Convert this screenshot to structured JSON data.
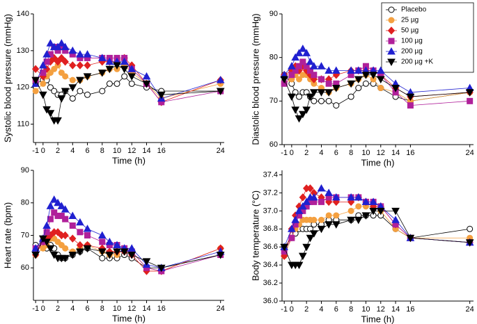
{
  "chart_data": [
    {
      "type": "line",
      "y_label": "Systolic blood pressure (mmHg)",
      "x_label": "Time (h)",
      "x": [
        -1,
        0,
        0.5,
        1,
        1.5,
        2,
        2.5,
        3,
        4,
        5,
        6,
        8,
        9,
        10,
        11,
        12,
        14,
        16,
        24
      ],
      "xlim": [
        -1.3,
        24.5
      ],
      "xticks": [
        -1,
        0,
        2,
        4,
        6,
        8,
        10,
        12,
        14,
        16,
        24
      ],
      "ylim": [
        105,
        140
      ],
      "yticks": [
        110,
        120,
        130,
        140
      ],
      "series": [
        {
          "color": "#000000",
          "fill": "#ffffff",
          "marker": "circle",
          "values": [
            121,
            122,
            122,
            120,
            119,
            118,
            118,
            119,
            117,
            119,
            118,
            119,
            121,
            121,
            123,
            121,
            120,
            119,
            119
          ]
        },
        {
          "color": "#f4a040",
          "fill": "#f4a040",
          "marker": "circle",
          "values": [
            119,
            121,
            123,
            124,
            125,
            126,
            124,
            123,
            122,
            122,
            123,
            124,
            125,
            125,
            126,
            124,
            121,
            117,
            121
          ]
        },
        {
          "color": "#e02020",
          "fill": "#e02020",
          "marker": "diamond",
          "values": [
            125,
            123,
            125,
            127,
            128,
            127,
            128,
            127,
            126,
            126,
            126,
            127,
            127,
            127,
            128,
            126,
            121,
            116,
            122
          ]
        },
        {
          "color": "#b0209a",
          "fill": "#b0209a",
          "marker": "square",
          "values": [
            122,
            124,
            127,
            129,
            131,
            130,
            131,
            130,
            129,
            128,
            128,
            128,
            128,
            128,
            128,
            125,
            121,
            116,
            119
          ]
        },
        {
          "color": "#2020d0",
          "fill": "#2020d0",
          "marker": "triangle",
          "values": [
            121,
            126,
            129,
            132,
            131,
            131,
            132,
            131,
            130,
            129,
            129,
            128,
            127,
            127,
            127,
            125,
            123,
            117,
            122
          ]
        },
        {
          "color": "#000000",
          "fill": "#000000",
          "marker": "down",
          "values": [
            122,
            118,
            114,
            113,
            111,
            111,
            117,
            119,
            120,
            122,
            123,
            124,
            125,
            126,
            125,
            123,
            121,
            118,
            119
          ]
        }
      ]
    },
    {
      "type": "line",
      "y_label": "Diastolic blood pressure (mmHg)",
      "x_label": "Time (h)",
      "x": [
        -1,
        0,
        0.5,
        1,
        1.5,
        2,
        2.5,
        3,
        4,
        5,
        6,
        8,
        9,
        10,
        11,
        12,
        14,
        16,
        24
      ],
      "xlim": [
        -1.3,
        24.5
      ],
      "xticks": [
        -1,
        0,
        2,
        4,
        6,
        8,
        10,
        12,
        14,
        16,
        24
      ],
      "ylim": [
        60,
        90
      ],
      "yticks": [
        60,
        70,
        80,
        90
      ],
      "series": [
        {
          "name": "Placebo",
          "color": "#000000",
          "fill": "#ffffff",
          "marker": "circle",
          "values": [
            76,
            74,
            72,
            71,
            72,
            72,
            71,
            70,
            70,
            70,
            69,
            71,
            73,
            74,
            74,
            73,
            71,
            70,
            72
          ]
        },
        {
          "name": "25 µg",
          "color": "#f4a040",
          "fill": "#f4a040",
          "marker": "circle",
          "values": [
            74,
            75,
            76,
            75,
            76,
            76,
            75,
            74,
            73,
            72,
            73,
            74,
            75,
            76,
            75,
            73,
            72,
            70,
            72
          ]
        },
        {
          "name": "50 µg",
          "color": "#e02020",
          "fill": "#e02020",
          "marker": "diamond",
          "values": [
            76,
            77,
            78,
            77,
            78,
            77,
            76,
            75,
            75,
            75,
            76,
            77,
            77,
            77,
            77,
            76,
            73,
            71,
            72
          ]
        },
        {
          "name": "100 µg",
          "color": "#b0209a",
          "fill": "#b0209a",
          "marker": "square",
          "values": [
            74,
            76,
            77,
            78,
            79,
            78,
            77,
            76,
            75,
            74,
            74,
            76,
            77,
            78,
            77,
            76,
            72,
            69,
            70
          ]
        },
        {
          "name": "200 µg",
          "color": "#2020d0",
          "fill": "#2020d0",
          "marker": "triangle",
          "values": [
            76,
            78,
            80,
            81,
            82,
            81,
            79,
            78,
            78,
            77,
            77,
            77,
            77,
            77,
            77,
            77,
            74,
            72,
            73
          ]
        },
        {
          "name": "200 µg +K",
          "color": "#000000",
          "fill": "#000000",
          "marker": "down",
          "values": [
            75,
            71,
            68,
            66,
            67,
            68,
            71,
            72,
            72,
            72,
            73,
            74,
            75,
            76,
            76,
            75,
            73,
            71,
            72
          ]
        }
      ]
    },
    {
      "type": "line",
      "y_label": "Heart rate (bpm)",
      "x_label": "Time (h)",
      "x": [
        -1,
        0,
        0.5,
        1,
        1.5,
        2,
        2.5,
        3,
        4,
        5,
        6,
        8,
        9,
        10,
        11,
        12,
        14,
        16,
        24
      ],
      "xlim": [
        -1.3,
        24.5
      ],
      "xticks": [
        -1,
        0,
        2,
        4,
        6,
        8,
        10,
        12,
        14,
        16,
        24
      ],
      "ylim": [
        50,
        90
      ],
      "yticks": [
        60,
        70,
        80,
        90
      ],
      "series": [
        {
          "color": "#000000",
          "fill": "#ffffff",
          "marker": "circle",
          "values": [
            67,
            67,
            66,
            67,
            66,
            64,
            63,
            63,
            64,
            65,
            66,
            63,
            63,
            63,
            64,
            63,
            60,
            60,
            64
          ]
        },
        {
          "color": "#f4a040",
          "fill": "#f4a040",
          "marker": "circle",
          "values": [
            64,
            66,
            67,
            69,
            69,
            68,
            67,
            66,
            65,
            66,
            67,
            65,
            64,
            64,
            66,
            65,
            60,
            59,
            66
          ]
        },
        {
          "color": "#e02020",
          "fill": "#e02020",
          "marker": "diamond",
          "values": [
            64,
            68,
            69,
            70,
            71,
            71,
            70,
            70,
            69,
            67,
            67,
            66,
            65,
            65,
            65,
            64,
            59,
            59,
            66
          ]
        },
        {
          "color": "#b0209a",
          "fill": "#b0209a",
          "marker": "square",
          "values": [
            66,
            68,
            71,
            75,
            77,
            76,
            76,
            75,
            73,
            71,
            70,
            68,
            67,
            67,
            66,
            65,
            60,
            59,
            64
          ]
        },
        {
          "color": "#2020d0",
          "fill": "#2020d0",
          "marker": "triangle",
          "values": [
            66,
            69,
            73,
            79,
            81,
            80,
            79,
            78,
            76,
            74,
            72,
            70,
            68,
            67,
            66,
            66,
            61,
            60,
            65
          ]
        },
        {
          "color": "#000000",
          "fill": "#000000",
          "marker": "down",
          "values": [
            64,
            69,
            68,
            66,
            64,
            63,
            63,
            63,
            64,
            65,
            66,
            65,
            64,
            65,
            65,
            64,
            62,
            60,
            64
          ]
        }
      ]
    },
    {
      "type": "line",
      "y_label": "Body temperature (°C)",
      "x_label": "Time (h)",
      "x": [
        -1,
        0,
        0.5,
        1,
        1.5,
        2,
        2.5,
        3,
        4,
        5,
        6,
        8,
        9,
        10,
        11,
        12,
        14,
        16,
        24
      ],
      "xlim": [
        -1.3,
        24.5
      ],
      "xticks": [
        -1,
        0,
        2,
        4,
        6,
        8,
        10,
        12,
        14,
        16,
        24
      ],
      "ylim": [
        36.0,
        37.45
      ],
      "yticks": [
        {
          "value": 36,
          "label": "36.0"
        },
        36.2,
        36.4,
        36.6,
        36.8,
        {
          "value": 37,
          "label": "37.0"
        },
        37.2,
        37.4
      ],
      "series": [
        {
          "color": "#000000",
          "fill": "#ffffff",
          "marker": "circle",
          "values": [
            36.6,
            36.7,
            36.75,
            36.8,
            36.8,
            36.8,
            36.8,
            36.85,
            36.85,
            36.9,
            36.9,
            36.9,
            36.95,
            36.95,
            36.95,
            36.95,
            36.8,
            36.7,
            36.8
          ]
        },
        {
          "color": "#f4a040",
          "fill": "#f4a040",
          "marker": "circle",
          "values": [
            36.5,
            36.7,
            36.8,
            36.85,
            36.9,
            36.9,
            36.9,
            36.9,
            36.9,
            36.95,
            36.95,
            37.0,
            37.05,
            37.05,
            37.05,
            37.0,
            36.8,
            36.7,
            36.7
          ]
        },
        {
          "color": "#e02020",
          "fill": "#e02020",
          "marker": "diamond",
          "values": [
            36.5,
            36.8,
            36.95,
            37.05,
            37.15,
            37.25,
            37.25,
            37.2,
            37.15,
            37.1,
            37.1,
            37.1,
            37.15,
            37.1,
            37.05,
            37.05,
            36.85,
            36.7,
            36.65
          ]
        },
        {
          "color": "#b0209a",
          "fill": "#b0209a",
          "marker": "square",
          "values": [
            36.55,
            36.7,
            36.85,
            36.95,
            37.0,
            37.05,
            37.1,
            37.1,
            37.1,
            37.15,
            37.15,
            37.15,
            37.15,
            37.1,
            37.1,
            37.05,
            36.85,
            36.7,
            36.65
          ]
        },
        {
          "color": "#2020d0",
          "fill": "#2020d0",
          "marker": "triangle",
          "values": [
            36.6,
            36.8,
            36.9,
            37.0,
            37.05,
            37.1,
            37.15,
            37.15,
            37.25,
            37.2,
            37.15,
            37.15,
            37.15,
            37.1,
            37.1,
            37.05,
            36.9,
            36.7,
            36.65
          ]
        },
        {
          "color": "#000000",
          "fill": "#000000",
          "marker": "down",
          "values": [
            36.6,
            36.4,
            36.4,
            36.4,
            36.5,
            36.6,
            36.7,
            36.75,
            36.8,
            36.85,
            36.85,
            36.9,
            36.9,
            36.95,
            37.0,
            37.0,
            37.0,
            36.7,
            36.65
          ]
        }
      ]
    }
  ]
}
